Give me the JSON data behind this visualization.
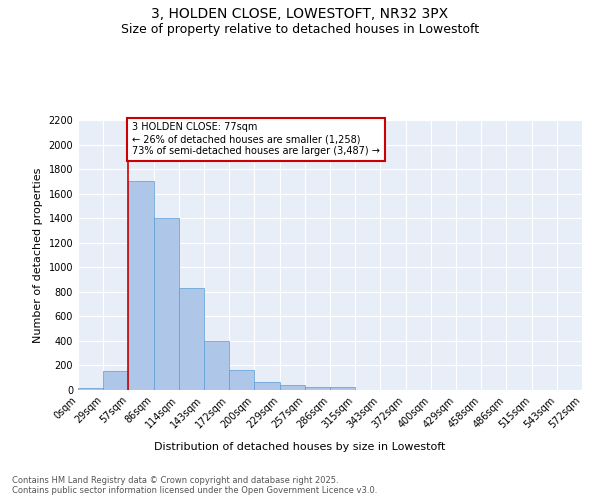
{
  "title": "3, HOLDEN CLOSE, LOWESTOFT, NR32 3PX",
  "subtitle": "Size of property relative to detached houses in Lowestoft",
  "xlabel": "Distribution of detached houses by size in Lowestoft",
  "ylabel": "Number of detached properties",
  "bar_values": [
    15,
    155,
    1700,
    1400,
    830,
    400,
    165,
    65,
    38,
    28,
    28,
    0,
    0,
    0,
    0,
    0,
    0,
    0,
    0,
    0
  ],
  "bar_labels": [
    "0sqm",
    "29sqm",
    "57sqm",
    "86sqm",
    "114sqm",
    "143sqm",
    "172sqm",
    "200sqm",
    "229sqm",
    "257sqm",
    "286sqm",
    "315sqm",
    "343sqm",
    "372sqm",
    "400sqm",
    "429sqm",
    "458sqm",
    "486sqm",
    "515sqm",
    "543sqm",
    "572sqm"
  ],
  "bar_color": "#aec6e8",
  "bar_edge_color": "#5b9bd5",
  "background_color": "#e8eef7",
  "vline_x": 2,
  "vline_color": "#cc0000",
  "ylim": [
    0,
    2200
  ],
  "yticks": [
    0,
    200,
    400,
    600,
    800,
    1000,
    1200,
    1400,
    1600,
    1800,
    2000,
    2200
  ],
  "annotation_text": "3 HOLDEN CLOSE: 77sqm\n← 26% of detached houses are smaller (1,258)\n73% of semi-detached houses are larger (3,487) →",
  "annotation_box_color": "#cc0000",
  "footer_text": "Contains HM Land Registry data © Crown copyright and database right 2025.\nContains public sector information licensed under the Open Government Licence v3.0.",
  "title_fontsize": 10,
  "subtitle_fontsize": 9,
  "axis_label_fontsize": 8,
  "tick_fontsize": 7,
  "annotation_fontsize": 7,
  "footer_fontsize": 6
}
